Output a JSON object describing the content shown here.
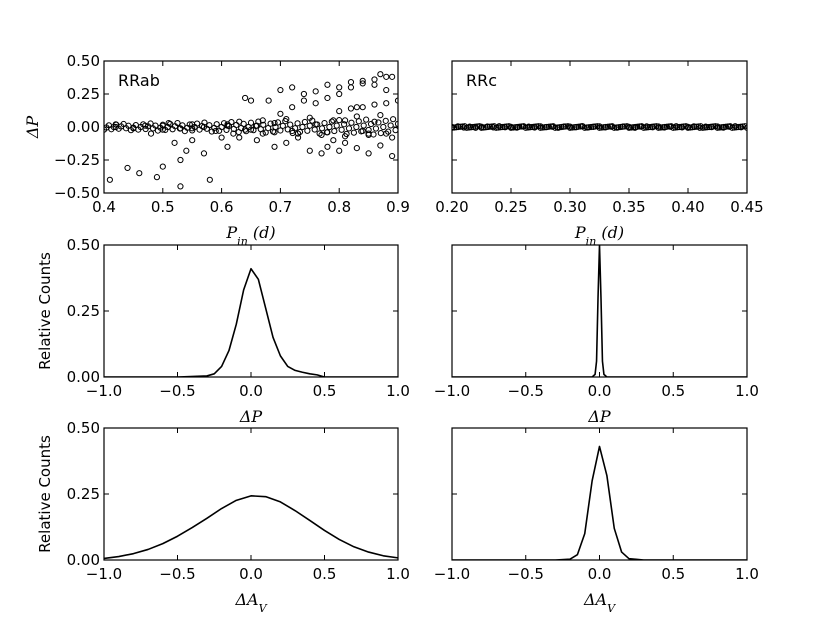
{
  "colors": {
    "line": "#000000",
    "background": "#ffffff"
  },
  "chart_data": [
    {
      "id": "rrab-scatter",
      "type": "scatter",
      "annotation": "RRab",
      "xlabel": "P_in (d)",
      "ylabel": "ΔP",
      "xlim": [
        0.4,
        0.9
      ],
      "ylim": [
        -0.5,
        0.5
      ],
      "xticks": [
        "0.4",
        "0.5",
        "0.6",
        "0.7",
        "0.8",
        "0.9"
      ],
      "yticks": [
        "−0.50",
        "−0.25",
        "0.00",
        "0.25",
        "0.50"
      ],
      "marker": "open-circle",
      "points_x": [
        0.41,
        0.44,
        0.46,
        0.48,
        0.49,
        0.5,
        0.52,
        0.53,
        0.53,
        0.54,
        0.55,
        0.57,
        0.58,
        0.6,
        0.61,
        0.62,
        0.63,
        0.64,
        0.65,
        0.66,
        0.67,
        0.68,
        0.69,
        0.7,
        0.71,
        0.72,
        0.73,
        0.74,
        0.75,
        0.76,
        0.77,
        0.78,
        0.79,
        0.8,
        0.81,
        0.82,
        0.83,
        0.84,
        0.85,
        0.86,
        0.87,
        0.88,
        0.89,
        0.42,
        0.5,
        0.55,
        0.61,
        0.64,
        0.66,
        0.69,
        0.72,
        0.76,
        0.78,
        0.81,
        0.84,
        0.86,
        0.88,
        0.42,
        0.45,
        0.47,
        0.5,
        0.51,
        0.53,
        0.55,
        0.57,
        0.59,
        0.61,
        0.63,
        0.65,
        0.67,
        0.69,
        0.71,
        0.73,
        0.75,
        0.77,
        0.79,
        0.81,
        0.83,
        0.85,
        0.87,
        0.89,
        0.7,
        0.72,
        0.74,
        0.76,
        0.78,
        0.8,
        0.82,
        0.84,
        0.86,
        0.88,
        0.8,
        0.82,
        0.84,
        0.86,
        0.88,
        0.9,
        0.78,
        0.8,
        0.83,
        0.85,
        0.87,
        0.89
      ],
      "points_y": [
        -0.4,
        -0.31,
        -0.35,
        -0.05,
        -0.38,
        -0.3,
        -0.12,
        -0.45,
        -0.25,
        -0.18,
        -0.1,
        -0.2,
        -0.4,
        -0.08,
        -0.15,
        -0.05,
        -0.08,
        0.22,
        0.2,
        -0.1,
        -0.05,
        0.2,
        -0.15,
        0.1,
        -0.12,
        0.15,
        -0.08,
        0.2,
        -0.18,
        0.18,
        -0.2,
        0.22,
        -0.1,
        0.25,
        -0.12,
        0.3,
        0.15,
        0.35,
        -0.05,
        0.32,
        0.4,
        0.28,
        0.38,
        0.0,
        0.01,
        -0.01,
        0.02,
        -0.02,
        0.01,
        0.03,
        -0.03,
        0.02,
        -0.04,
        0.05,
        -0.03,
        0.04,
        -0.05,
        0.02,
        -0.01,
        0.01,
        -0.02,
        0.03,
        -0.01,
        0.02,
        0.0,
        -0.03,
        0.01,
        0.04,
        -0.02,
        0.05,
        -0.04,
        0.06,
        -0.05,
        0.07,
        -0.06,
        0.05,
        -0.07,
        0.08,
        -0.06,
        0.09,
        -0.08,
        0.28,
        0.3,
        0.25,
        0.27,
        0.32,
        0.3,
        0.34,
        0.33,
        0.36,
        0.38,
        0.12,
        0.14,
        0.15,
        0.17,
        0.18,
        0.2,
        -0.15,
        -0.18,
        -0.16,
        -0.2,
        -0.14,
        -0.22
      ]
    },
    {
      "id": "rrc-scatter",
      "type": "scatter",
      "annotation": "RRc",
      "xlabel": "P_in (d)",
      "ylabel": "",
      "xlim": [
        0.2,
        0.45
      ],
      "ylim": [
        -0.5,
        0.5
      ],
      "xticks": [
        "0.20",
        "0.25",
        "0.30",
        "0.35",
        "0.40",
        "0.45"
      ],
      "yticks": [],
      "marker": "open-circle",
      "points_x": [
        0.2,
        0.205,
        0.21,
        0.215,
        0.22,
        0.225,
        0.23,
        0.235,
        0.24,
        0.245,
        0.25,
        0.255,
        0.26,
        0.265,
        0.27,
        0.275,
        0.28,
        0.285,
        0.29,
        0.295,
        0.3,
        0.305,
        0.31,
        0.315,
        0.32,
        0.325,
        0.33,
        0.335,
        0.34,
        0.345,
        0.35,
        0.355,
        0.36,
        0.365,
        0.37,
        0.375,
        0.38,
        0.385,
        0.39,
        0.395,
        0.4,
        0.405,
        0.41,
        0.415,
        0.42,
        0.425,
        0.43,
        0.435,
        0.44,
        0.445
      ],
      "points_y": [
        0.0,
        0.005,
        -0.004,
        0.003,
        -0.006,
        0.002,
        0.004,
        -0.003,
        0.006,
        -0.002,
        0.001,
        -0.005,
        0.004,
        0.003,
        -0.004,
        0.005,
        -0.001,
        0.002,
        -0.006,
        0.004,
        0.003,
        -0.002,
        0.006,
        -0.004,
        0.001,
        0.005,
        -0.003,
        0.002,
        -0.005,
        0.004,
        0.001,
        -0.006,
        0.003,
        0.005,
        -0.002,
        0.004,
        -0.004,
        0.002,
        0.006,
        -0.003,
        0.001,
        0.005,
        -0.006,
        0.003,
        -0.001,
        0.004,
        -0.005,
        0.002,
        0.006,
        -0.002
      ]
    },
    {
      "id": "rrab-dp-hist",
      "type": "line",
      "xlabel": "ΔP",
      "ylabel": "Relative Counts",
      "xlim": [
        -1.0,
        1.0
      ],
      "ylim": [
        0,
        0.5
      ],
      "xticks": [
        "−1.0",
        "−0.5",
        "0.0",
        "0.5",
        "1.0"
      ],
      "yticks": [
        "0.00",
        "0.25",
        "0.50"
      ],
      "x": [
        -1.0,
        -0.5,
        -0.3,
        -0.25,
        -0.2,
        -0.15,
        -0.1,
        -0.05,
        0.0,
        0.05,
        0.1,
        0.15,
        0.2,
        0.25,
        0.3,
        0.35,
        0.4,
        0.45,
        0.5,
        1.0
      ],
      "y": [
        0.0,
        0.0,
        0.004,
        0.012,
        0.04,
        0.1,
        0.2,
        0.33,
        0.41,
        0.37,
        0.26,
        0.15,
        0.08,
        0.04,
        0.025,
        0.018,
        0.012,
        0.008,
        0.0,
        0.0
      ]
    },
    {
      "id": "rrc-dp-hist",
      "type": "line",
      "xlabel": "ΔP",
      "ylabel": "",
      "xlim": [
        -1.0,
        1.0
      ],
      "ylim": [
        0,
        0.5
      ],
      "xticks": [
        "−1.0",
        "−0.5",
        "0.0",
        "0.5",
        "1.0"
      ],
      "yticks": [],
      "x": [
        -1.0,
        -0.05,
        -0.03,
        -0.02,
        -0.01,
        0.0,
        0.01,
        0.02,
        0.03,
        0.05,
        1.0
      ],
      "y": [
        0.0,
        0.0,
        0.01,
        0.06,
        0.3,
        0.5,
        0.3,
        0.06,
        0.01,
        0.0,
        0.0
      ]
    },
    {
      "id": "rrab-da-hist",
      "type": "line",
      "xlabel": "ΔA_V",
      "ylabel": "Relative Counts",
      "xlim": [
        -1.0,
        1.0
      ],
      "ylim": [
        0,
        0.5
      ],
      "xticks": [
        "−1.0",
        "−0.5",
        "0.0",
        "0.5",
        "1.0"
      ],
      "yticks": [
        "0.00",
        "0.25",
        "0.50"
      ],
      "x": [
        -1.0,
        -0.9,
        -0.8,
        -0.7,
        -0.6,
        -0.5,
        -0.4,
        -0.3,
        -0.2,
        -0.1,
        0.0,
        0.1,
        0.2,
        0.3,
        0.4,
        0.5,
        0.6,
        0.7,
        0.8,
        0.9,
        1.0
      ],
      "y": [
        0.006,
        0.013,
        0.024,
        0.04,
        0.062,
        0.09,
        0.123,
        0.158,
        0.195,
        0.226,
        0.243,
        0.24,
        0.22,
        0.187,
        0.15,
        0.112,
        0.078,
        0.05,
        0.03,
        0.016,
        0.008
      ]
    },
    {
      "id": "rrc-da-hist",
      "type": "line",
      "xlabel": "ΔA_V",
      "ylabel": "",
      "xlim": [
        -1.0,
        1.0
      ],
      "ylim": [
        0,
        0.5
      ],
      "xticks": [
        "−1.0",
        "−0.5",
        "0.0",
        "0.5",
        "1.0"
      ],
      "yticks": [],
      "x": [
        -1.0,
        -0.3,
        -0.2,
        -0.15,
        -0.1,
        -0.05,
        0.0,
        0.05,
        0.1,
        0.15,
        0.2,
        0.3,
        1.0
      ],
      "y": [
        0.0,
        0.0,
        0.003,
        0.02,
        0.1,
        0.3,
        0.43,
        0.32,
        0.12,
        0.03,
        0.005,
        0.0,
        0.0
      ]
    }
  ]
}
